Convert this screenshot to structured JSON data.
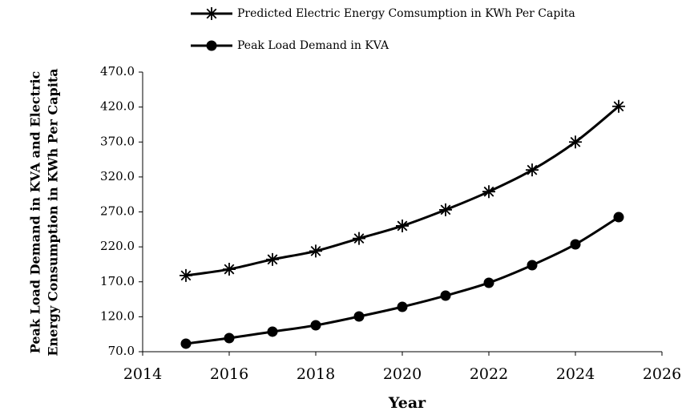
{
  "chart_data": {
    "type": "line",
    "xlabel": "Year",
    "ylabel": [
      "Peak Load Demand in KVA and Electric",
      "Energy Consumption in KWh Per Capita"
    ],
    "x": [
      2015,
      2016,
      2017,
      2018,
      2019,
      2020,
      2021,
      2022,
      2023,
      2024,
      2025
    ],
    "series": [
      {
        "name": "Predicted Electric Energy  Comsumption in KWh Per Capita",
        "color": "#000000",
        "marker": "asterisk",
        "values": [
          179,
          188,
          202,
          214,
          232,
          250,
          273,
          299,
          330,
          370,
          421
        ]
      },
      {
        "name": "Peak Load Demand in KVA",
        "color": "#000000",
        "marker": "circle",
        "values": [
          81.5,
          89.5,
          98.7,
          107.8,
          120.4,
          134.2,
          150.2,
          168.6,
          193.8,
          223.6,
          262.5
        ]
      }
    ],
    "xlim": [
      2014,
      2026
    ],
    "xticks": [
      2014,
      2016,
      2018,
      2020,
      2022,
      2024,
      2026
    ],
    "ylim": [
      70,
      470
    ],
    "yticks": [
      {
        "value": 70,
        "label": "70.0"
      },
      {
        "value": 120,
        "label": "120.0"
      },
      {
        "value": 170,
        "label": "170.0"
      },
      {
        "value": 220,
        "label": "220.0"
      },
      {
        "value": 270,
        "label": "270.0"
      },
      {
        "value": 320,
        "label": "320.0"
      },
      {
        "value": 370,
        "label": "370.0"
      },
      {
        "value": 420,
        "label": "420.0"
      },
      {
        "value": 470,
        "label": "470.0"
      }
    ],
    "grid": false,
    "legend": "top"
  }
}
